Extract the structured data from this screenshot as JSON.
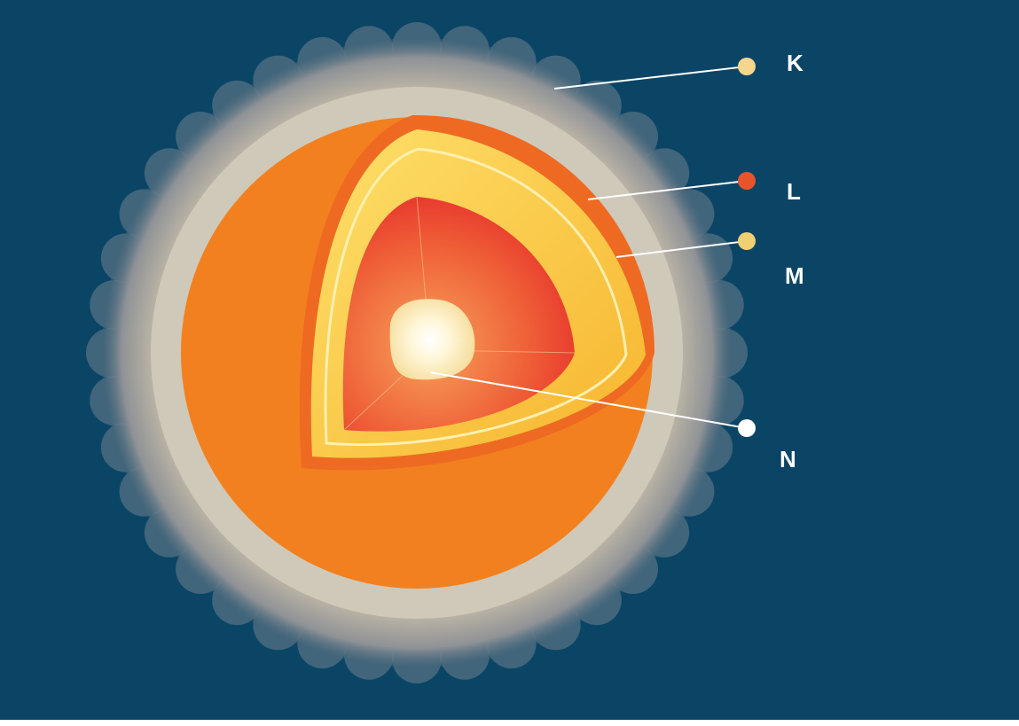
{
  "labels": [
    "K",
    "L",
    "M",
    "N"
  ]
}
